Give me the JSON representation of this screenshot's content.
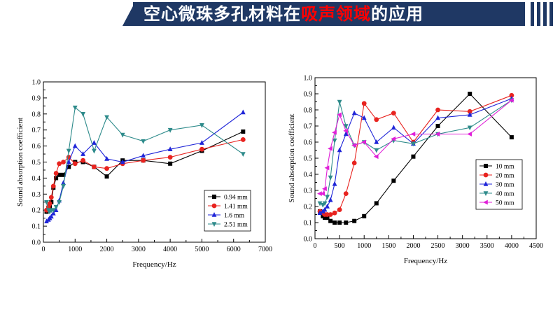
{
  "header": {
    "title_part1": "空心微珠多孔材料在",
    "title_highlight": "吸声领域",
    "title_part2": "的应用",
    "bg_color": "#1f3864",
    "highlight_color": "#ff0000"
  },
  "chart_data": [
    {
      "type": "line",
      "xlabel": "Frequency/Hz",
      "ylabel": "Sound absorption coefficient",
      "xlim": [
        0,
        7000
      ],
      "ylim": [
        0,
        1.0
      ],
      "xticks": [
        "0",
        "1000",
        "2000",
        "3000",
        "4000",
        "5000",
        "6000",
        "7000"
      ],
      "yticks": [
        "0.0",
        "0.1",
        "0.2",
        "0.3",
        "0.4",
        "0.5",
        "0.6",
        "0.7",
        "0.8",
        "0.9",
        "1.0"
      ],
      "legend_position": "bottom-right",
      "series": [
        {
          "name": "0.94 mm",
          "color": "#000000",
          "marker": "square",
          "x": [
            100,
            160,
            200,
            250,
            315,
            400,
            500,
            630,
            800,
            1000,
            1250,
            1600,
            2000,
            2500,
            3150,
            4000,
            5000,
            6300
          ],
          "y": [
            0.19,
            0.2,
            0.22,
            0.25,
            0.34,
            0.4,
            0.42,
            0.42,
            0.47,
            0.5,
            0.5,
            0.47,
            0.41,
            0.51,
            0.51,
            0.49,
            0.57,
            0.69
          ]
        },
        {
          "name": "1.41 mm",
          "color": "#e8231f",
          "marker": "circle",
          "x": [
            100,
            160,
            200,
            250,
            315,
            400,
            500,
            630,
            800,
            1000,
            1250,
            1600,
            2000,
            2500,
            3150,
            4000,
            5000,
            6300
          ],
          "y": [
            0.2,
            0.22,
            0.24,
            0.28,
            0.35,
            0.43,
            0.49,
            0.5,
            0.53,
            0.49,
            0.51,
            0.47,
            0.46,
            0.49,
            0.51,
            0.53,
            0.58,
            0.64
          ]
        },
        {
          "name": "1.6 mm",
          "color": "#1f25d8",
          "marker": "triangle",
          "x": [
            100,
            160,
            200,
            250,
            315,
            400,
            500,
            630,
            800,
            1000,
            1250,
            1600,
            2000,
            2500,
            3150,
            4000,
            5000,
            6300
          ],
          "y": [
            0.13,
            0.14,
            0.15,
            0.16,
            0.18,
            0.2,
            0.26,
            0.37,
            0.5,
            0.6,
            0.55,
            0.62,
            0.52,
            0.5,
            0.54,
            0.58,
            0.62,
            0.81
          ]
        },
        {
          "name": "2.51 mm",
          "color": "#2e8b8b",
          "marker": "triangle-down",
          "x": [
            100,
            160,
            200,
            250,
            315,
            400,
            500,
            630,
            800,
            1000,
            1250,
            1600,
            2000,
            2500,
            3150,
            4000,
            5000,
            6300
          ],
          "y": [
            0.25,
            0.2,
            0.19,
            0.2,
            0.2,
            0.22,
            0.25,
            0.35,
            0.57,
            0.84,
            0.8,
            0.57,
            0.78,
            0.67,
            0.63,
            0.7,
            0.73,
            0.55
          ]
        }
      ]
    },
    {
      "type": "line",
      "xlabel": "Frequency/Hz",
      "ylabel": "Sound absorption coefficient",
      "xlim": [
        0,
        4500
      ],
      "ylim": [
        0,
        1.0
      ],
      "xticks": [
        "0",
        "500",
        "1000",
        "1500",
        "2000",
        "2500",
        "3000",
        "3500",
        "4000",
        "4500"
      ],
      "yticks": [
        "0.0",
        "0.1",
        "0.2",
        "0.3",
        "0.4",
        "0.5",
        "0.6",
        "0.7",
        "0.8",
        "0.9",
        "1.0"
      ],
      "legend_position": "bottom-right",
      "series": [
        {
          "name": "10 mm",
          "color": "#000000",
          "marker": "square",
          "x": [
            100,
            160,
            200,
            250,
            315,
            400,
            500,
            630,
            800,
            1000,
            1250,
            1600,
            2000,
            2500,
            3150,
            4000
          ],
          "y": [
            0.17,
            0.14,
            0.13,
            0.13,
            0.11,
            0.1,
            0.1,
            0.1,
            0.11,
            0.14,
            0.22,
            0.36,
            0.51,
            0.7,
            0.9,
            0.63
          ]
        },
        {
          "name": "20 mm",
          "color": "#e8231f",
          "marker": "circle",
          "x": [
            100,
            160,
            200,
            250,
            315,
            400,
            500,
            630,
            800,
            1000,
            1250,
            1600,
            2000,
            2500,
            3150,
            4000
          ],
          "y": [
            0.17,
            0.16,
            0.15,
            0.15,
            0.15,
            0.16,
            0.18,
            0.28,
            0.47,
            0.84,
            0.74,
            0.78,
            0.6,
            0.8,
            0.79,
            0.89
          ]
        },
        {
          "name": "30 mm",
          "color": "#1f25d8",
          "marker": "triangle",
          "x": [
            100,
            160,
            200,
            250,
            315,
            400,
            500,
            630,
            800,
            1000,
            1250,
            1600,
            2000,
            2500,
            3150,
            4000
          ],
          "y": [
            0.16,
            0.17,
            0.18,
            0.2,
            0.24,
            0.34,
            0.55,
            0.65,
            0.78,
            0.75,
            0.6,
            0.69,
            0.59,
            0.75,
            0.77,
            0.87
          ]
        },
        {
          "name": "40 mm",
          "color": "#2e8b8b",
          "marker": "triangle-down",
          "x": [
            100,
            160,
            200,
            250,
            315,
            400,
            500,
            630,
            800,
            1000,
            1250,
            1600,
            2000,
            2500,
            3150,
            4000
          ],
          "y": [
            0.22,
            0.21,
            0.22,
            0.26,
            0.38,
            0.61,
            0.85,
            0.7,
            0.58,
            0.6,
            0.55,
            0.61,
            0.59,
            0.65,
            0.69,
            0.86
          ]
        },
        {
          "name": "50 mm",
          "color": "#e020d8",
          "marker": "triangle-left",
          "x": [
            100,
            160,
            200,
            250,
            315,
            400,
            500,
            630,
            800,
            1000,
            1250,
            1600,
            2000,
            2500,
            3150,
            4000
          ],
          "y": [
            0.28,
            0.28,
            0.31,
            0.44,
            0.56,
            0.66,
            0.77,
            0.67,
            0.58,
            0.6,
            0.51,
            0.62,
            0.65,
            0.65,
            0.65,
            0.86
          ]
        }
      ]
    }
  ]
}
